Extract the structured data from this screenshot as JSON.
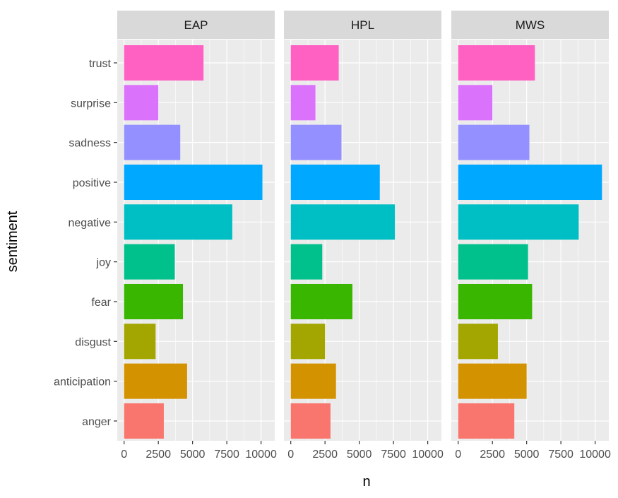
{
  "chart_data": {
    "type": "bar",
    "orientation": "horizontal",
    "facet_by": "author",
    "facets": [
      "EAP",
      "HPL",
      "MWS"
    ],
    "categories": [
      "trust",
      "surprise",
      "sadness",
      "positive",
      "negative",
      "joy",
      "fear",
      "disgust",
      "anticipation",
      "anger"
    ],
    "series": [
      {
        "facet": "EAP",
        "values": [
          5800,
          2500,
          4100,
          10100,
          7900,
          3700,
          4300,
          2300,
          4600,
          2900
        ]
      },
      {
        "facet": "HPL",
        "values": [
          3500,
          1800,
          3700,
          6500,
          7600,
          2300,
          4500,
          2500,
          3300,
          2900
        ]
      },
      {
        "facet": "MWS",
        "values": [
          5600,
          2500,
          5200,
          10500,
          8800,
          5100,
          5400,
          2900,
          5000,
          4100
        ]
      }
    ],
    "bar_colors": {
      "trust": "#FF61C3",
      "surprise": "#DB72FB",
      "sadness": "#9590FF",
      "positive": "#00A9FF",
      "negative": "#00BFC4",
      "joy": "#00C08B",
      "fear": "#39B600",
      "disgust": "#A3A500",
      "anticipation": "#D39200",
      "anger": "#F8766D"
    },
    "xlabel": "n",
    "ylabel": "sentiment",
    "xlim": [
      -500,
      11000
    ],
    "xticks": [
      0,
      2500,
      5000,
      7500,
      10000
    ],
    "xtick_labels": [
      "0",
      "2500",
      "5000",
      "7500",
      "10000"
    ],
    "grid": true,
    "legend": "none",
    "panel_background": "#EBEBEB",
    "strip_background": "#D9D9D9"
  }
}
